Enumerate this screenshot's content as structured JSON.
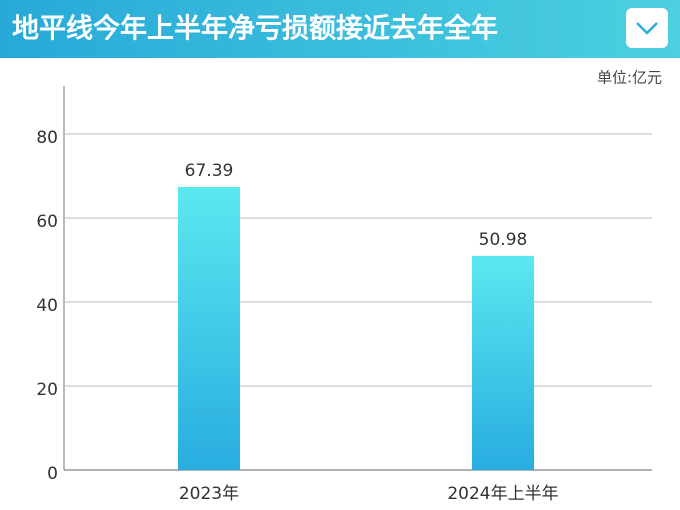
{
  "chart_data": {
    "type": "bar",
    "title": "地平线今年上半年净亏损额接近去年全年",
    "unit": "单位:亿元",
    "categories": [
      "2023年",
      "2024年上半年"
    ],
    "values": [
      67.39,
      50.98
    ],
    "ylim": [
      0,
      90
    ],
    "yticks": [
      0,
      20,
      40,
      60,
      80
    ],
    "grid": true
  }
}
